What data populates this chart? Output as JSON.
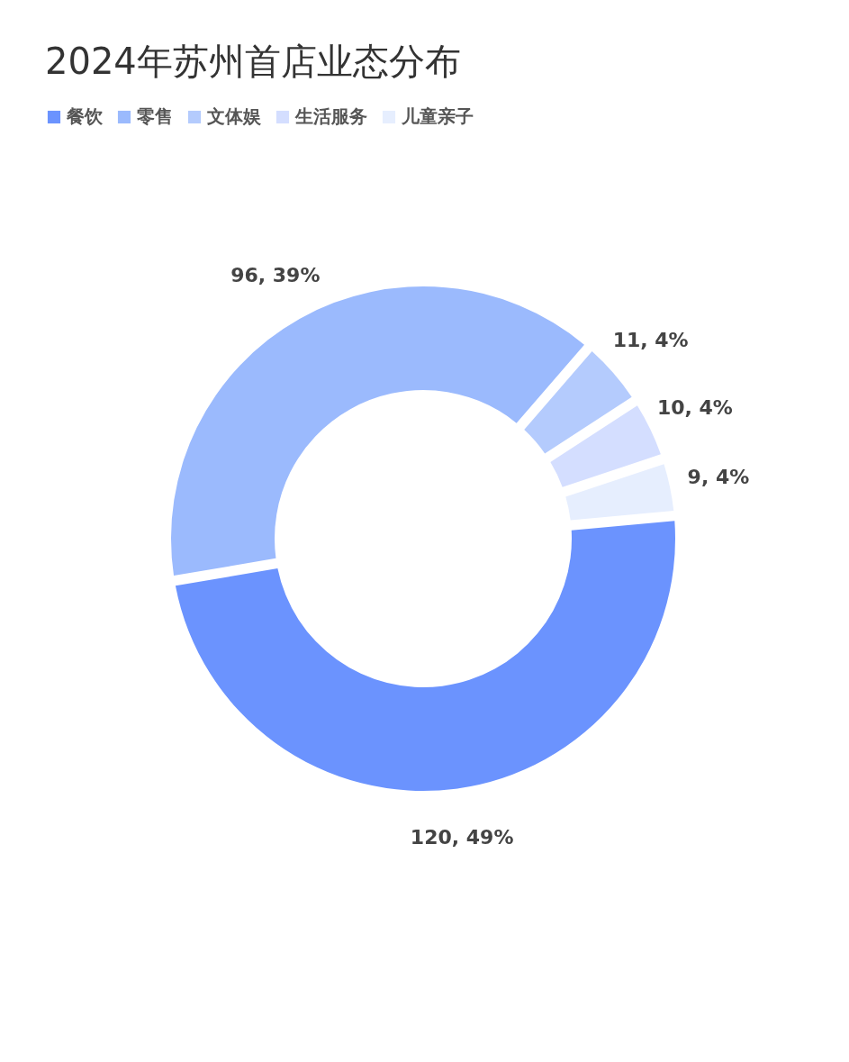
{
  "chart_data": {
    "type": "donut",
    "title": "2024年苏州首店业态分布",
    "categories": [
      "餐饮",
      "零售",
      "文体娱",
      "生活服务",
      "儿童亲子"
    ],
    "values": [
      120,
      96,
      11,
      10,
      9
    ],
    "colors": [
      "#6b93fe",
      "#9bbafd",
      "#b4cbfd",
      "#d4deff",
      "#e6eefe"
    ],
    "value_labels": [
      "120, 49%",
      "96, 39%",
      "11, 4%",
      "10, 4%",
      "9, 4%"
    ],
    "legend": "top left"
  }
}
